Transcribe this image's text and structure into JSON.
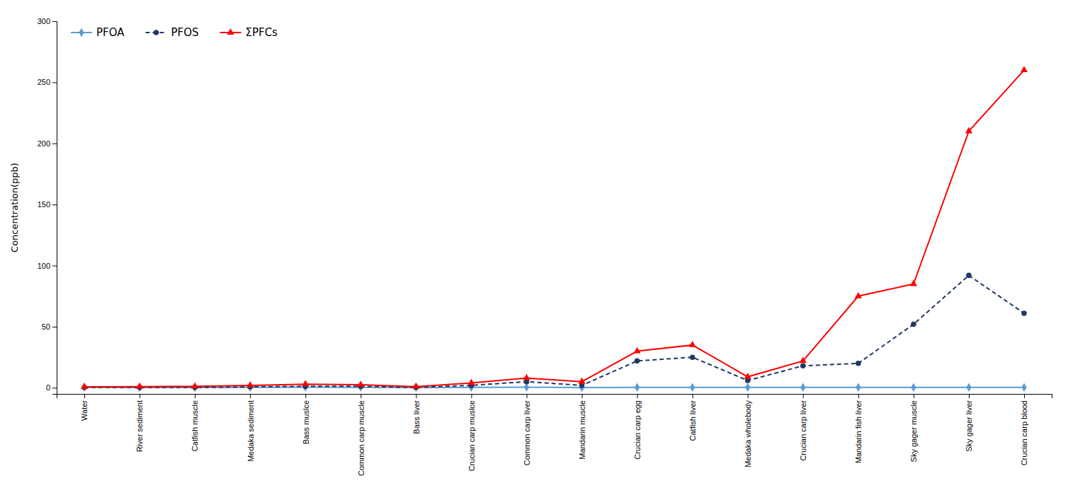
{
  "chart_data": {
    "type": "line",
    "categories": [
      "Water",
      "River sediment",
      "Catfish muscle",
      "Medaka sediment",
      "Bass muslce",
      "Common carp muscle",
      "Bass liver",
      "Crucian carp muslce",
      "Common carp liver",
      "Mandarin muscle",
      "Crucian carp egg",
      "Catfish liver",
      "Medaka wholebody",
      "Crucian carp liver",
      "Mandarin fish liver",
      "Sky gager muscle",
      "Sky gager liver",
      "Crucian carp blood"
    ],
    "series": [
      {
        "name": "PFOA",
        "color": "#5B9BD5",
        "marker": "diamond",
        "line_style": "solid",
        "values": [
          0.3,
          0.2,
          0.2,
          0.3,
          0.5,
          0.3,
          0.2,
          0.3,
          0.5,
          0.2,
          0.3,
          0.3,
          0.3,
          0.3,
          0.3,
          0.3,
          0.3,
          0.3
        ]
      },
      {
        "name": "PFOS",
        "color": "#203864",
        "marker": "circle",
        "line_style": "dashed",
        "values": [
          0.3,
          0.3,
          0.3,
          0.8,
          1.2,
          1.2,
          0.3,
          2.0,
          5.0,
          2.0,
          22.0,
          25.0,
          6.0,
          18.0,
          20.0,
          52.0,
          92.0,
          61.0
        ]
      },
      {
        "name": "ΣPFCs",
        "color": "#FF0000",
        "marker": "triangle",
        "line_style": "solid",
        "values": [
          0.8,
          1.0,
          1.2,
          2.0,
          3.0,
          2.5,
          1.0,
          4.0,
          8.0,
          5.0,
          30.0,
          35.0,
          9.0,
          22.0,
          75.0,
          85.0,
          210.0,
          260.0
        ]
      }
    ],
    "ylabel": "Concentration(ppb)",
    "ylim": [
      -5,
      300
    ],
    "yticks": [
      0,
      50,
      100,
      150,
      200,
      250,
      300
    ],
    "legend": "upper left",
    "grid": false
  }
}
